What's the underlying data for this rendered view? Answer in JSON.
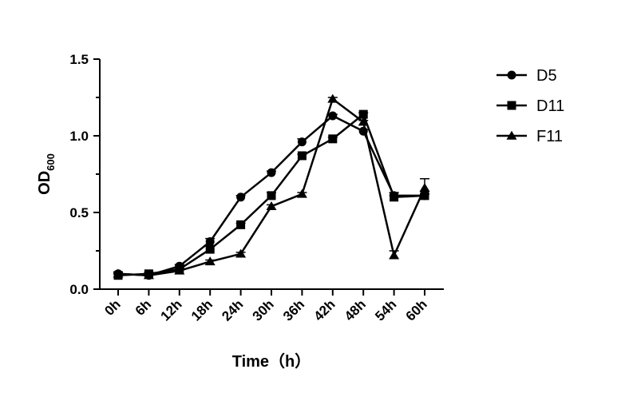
{
  "chart_data": {
    "type": "line",
    "xlabel": "Time（h）",
    "ylabel_main": "OD",
    "ylabel_sub": "600",
    "ylim": [
      0,
      1.5
    ],
    "yticks": [
      "0.0",
      "0.5",
      "1.0",
      "1.5"
    ],
    "yticks_values": [
      0,
      0.5,
      1.0,
      1.5
    ],
    "minor_ticks_between_major": 1,
    "grid": false,
    "legend_position": "top-right",
    "categories": [
      "0h",
      "6h",
      "12h",
      "18h",
      "24h",
      "30h",
      "36h",
      "42h",
      "48h",
      "54h",
      "60h"
    ],
    "series": [
      {
        "name": "D5",
        "marker": "circle",
        "color": "#000000",
        "values": [
          0.1,
          0.09,
          0.15,
          0.31,
          0.6,
          0.76,
          0.96,
          1.13,
          1.03,
          0.61,
          0.61
        ],
        "errors": [
          0.01,
          0.01,
          0.01,
          0.02,
          0.01,
          0.01,
          0.02,
          0.01,
          0.01,
          0.02,
          0.01
        ]
      },
      {
        "name": "D11",
        "marker": "square",
        "color": "#000000",
        "values": [
          0.09,
          0.1,
          0.13,
          0.26,
          0.42,
          0.61,
          0.87,
          0.98,
          1.14,
          0.6,
          0.61
        ],
        "errors": [
          0.01,
          0.01,
          0.01,
          0.02,
          0.01,
          0.02,
          0.01,
          0.01,
          0.01,
          0.01,
          0.01
        ]
      },
      {
        "name": "F11",
        "marker": "triangle",
        "color": "#000000",
        "values": [
          0.1,
          0.09,
          0.12,
          0.18,
          0.23,
          0.54,
          0.62,
          1.24,
          1.09,
          0.22,
          0.66
        ],
        "errors": [
          0.01,
          0.01,
          0.01,
          0.01,
          0.01,
          0.01,
          0.01,
          0.01,
          0.01,
          0.03,
          0.06
        ]
      }
    ]
  }
}
